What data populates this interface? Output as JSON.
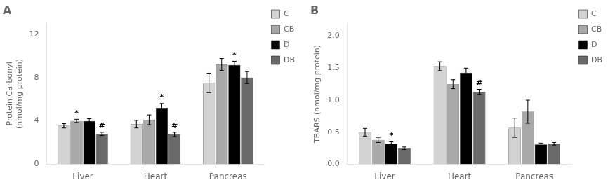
{
  "chart_data": [
    {
      "type": "bar",
      "title": "A",
      "ylabel": "Protein Carbonyl\n(nmol/mg protein)",
      "categories": [
        "Liver",
        "Heart",
        "Pancreas"
      ],
      "series": [
        {
          "name": "C",
          "color": "#d3d3d3",
          "values": [
            3.55,
            3.7,
            7.5
          ],
          "errors": [
            0.2,
            0.35,
            0.9
          ],
          "annotations": [
            null,
            null,
            null
          ]
        },
        {
          "name": "CB",
          "color": "#a9a9a9",
          "values": [
            4.0,
            4.1,
            9.2
          ],
          "errors": [
            0.15,
            0.45,
            0.55
          ],
          "annotations": [
            "*",
            null,
            null
          ]
        },
        {
          "name": "D",
          "color": "#000000",
          "values": [
            4.0,
            5.2,
            9.15
          ],
          "errors": [
            0.2,
            0.4,
            0.35
          ],
          "annotations": [
            null,
            "*",
            "*"
          ]
        },
        {
          "name": "DB",
          "color": "#696969",
          "values": [
            2.8,
            2.75,
            8.0
          ],
          "errors": [
            0.15,
            0.2,
            0.55
          ],
          "annotations": [
            "#",
            "#",
            null
          ]
        }
      ],
      "ylim": [
        0,
        13
      ],
      "yticks": [
        0,
        4,
        8,
        12
      ],
      "grid": false,
      "legend": "right"
    },
    {
      "type": "bar",
      "title": "B",
      "ylabel": "TBARS (nmol/mg protein)",
      "categories": [
        "Liver",
        "Heart",
        "Pancreas"
      ],
      "series": [
        {
          "name": "C",
          "color": "#d3d3d3",
          "values": [
            0.5,
            1.53,
            0.57
          ],
          "errors": [
            0.06,
            0.07,
            0.15
          ],
          "annotations": [
            null,
            null,
            null
          ]
        },
        {
          "name": "CB",
          "color": "#a9a9a9",
          "values": [
            0.38,
            1.25,
            0.82
          ],
          "errors": [
            0.04,
            0.07,
            0.18
          ],
          "annotations": [
            null,
            null,
            null
          ]
        },
        {
          "name": "D",
          "color": "#000000",
          "values": [
            0.32,
            1.43,
            0.31
          ],
          "errors": [
            0.03,
            0.07,
            0.02
          ],
          "annotations": [
            "*",
            null,
            null
          ]
        },
        {
          "name": "DB",
          "color": "#696969",
          "values": [
            0.25,
            1.13,
            0.32
          ],
          "errors": [
            0.02,
            0.04,
            0.02
          ],
          "annotations": [
            null,
            "#",
            null
          ]
        }
      ],
      "ylim": [
        0,
        2.2
      ],
      "yticks": [
        {
          "value": 0,
          "label": "0.0"
        },
        0.5,
        {
          "value": 1,
          "label": "1.0"
        },
        1.5,
        {
          "value": 2,
          "label": "2.0"
        }
      ],
      "grid": false,
      "legend": "right"
    }
  ]
}
